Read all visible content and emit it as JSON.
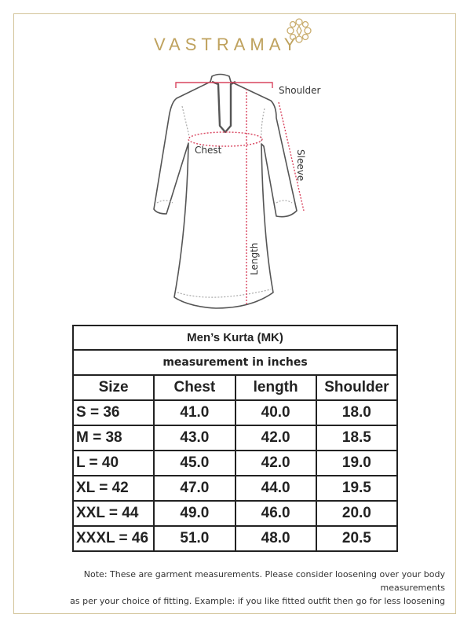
{
  "brand": {
    "name": "VASTRAMAY",
    "color": "#bfa25e"
  },
  "diagram": {
    "labels": {
      "shoulder": "Shoulder",
      "chest": "Chest",
      "sleeve": "Sleeve",
      "length": "Length"
    },
    "measure_color": "#d9455f"
  },
  "table": {
    "title": "Men’s Kurta (MK)",
    "subtitle": "measurement in inches",
    "headers": [
      "Size",
      "Chest",
      "length",
      "Shoulder"
    ],
    "rows": [
      [
        "S = 36",
        "41.0",
        "40.0",
        "18.0"
      ],
      [
        "M = 38",
        "43.0",
        "42.0",
        "18.5"
      ],
      [
        "L = 40",
        "45.0",
        "42.0",
        "19.0"
      ],
      [
        "XL = 42",
        "47.0",
        "44.0",
        "19.5"
      ],
      [
        "XXL = 44",
        "49.0",
        "46.0",
        "20.0"
      ],
      [
        "XXXL = 46",
        "51.0",
        "48.0",
        "20.5"
      ]
    ]
  },
  "note": {
    "line1": "Note: These are garment measurements. Please consider loosening over your body measurements",
    "line2": "as per your choice of fitting. Example: if you like fitted outfit then go for less loosening"
  }
}
